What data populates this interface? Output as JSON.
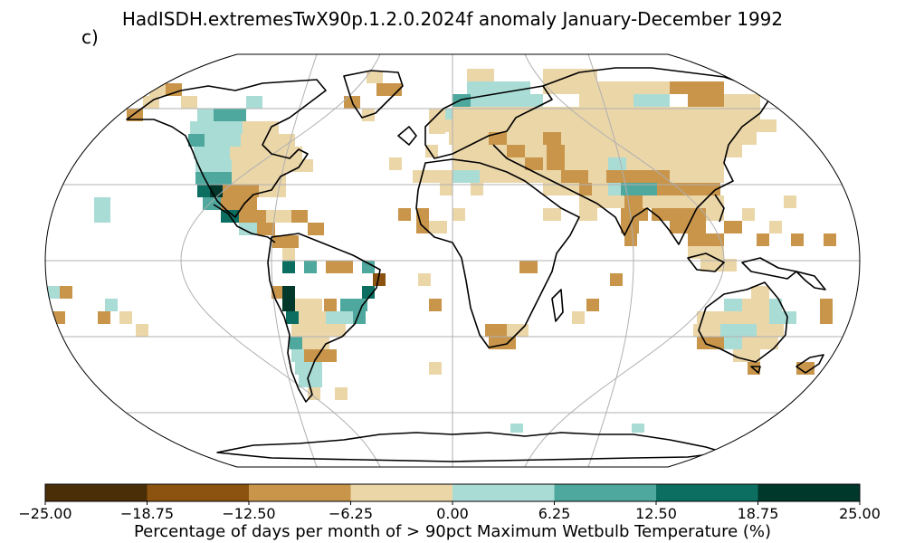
{
  "title": "HadISDH.extremesTwX90p.1.2.0.2024f anomaly January-December 1992",
  "panel_label": "c)",
  "colorbar": {
    "label": "Percentage of days per month of > 90pct Maximum Wetbulb Temperature (%)",
    "ticks": [
      "−25.00",
      "−18.75",
      "−12.50",
      "−6.25",
      "0.00",
      "6.25",
      "12.50",
      "18.75",
      "25.00"
    ],
    "range": [
      -25,
      25
    ],
    "bins": [
      {
        "from": -25,
        "to": -18.75,
        "color": "#4a2e07"
      },
      {
        "from": -18.75,
        "to": -12.5,
        "color": "#8c5310"
      },
      {
        "from": -12.5,
        "to": -6.25,
        "color": "#c8954a"
      },
      {
        "from": -6.25,
        "to": 0,
        "color": "#ebd6a8"
      },
      {
        "from": 0,
        "to": 6.25,
        "color": "#aadcd6"
      },
      {
        "from": 6.25,
        "to": 12.5,
        "color": "#4ea89d"
      },
      {
        "from": 12.5,
        "to": 18.75,
        "color": "#0c6e61"
      },
      {
        "from": 18.75,
        "to": 25,
        "color": "#00382c"
      }
    ]
  },
  "projection": "Robinson",
  "gridlines": true,
  "map_colors": {
    "ocean": "#ffffff",
    "coast": "#000000",
    "grid": "#b0b0b0"
  }
}
